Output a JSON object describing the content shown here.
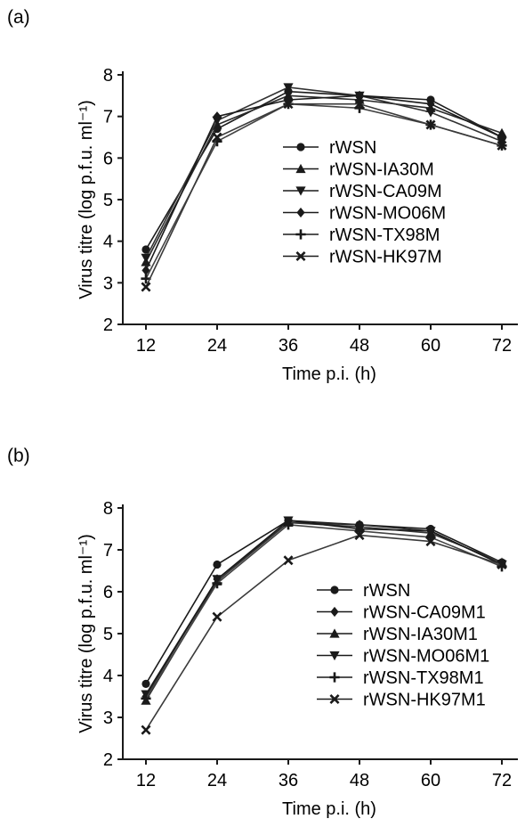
{
  "chart_data": [
    {
      "panel_label": "(a)",
      "type": "line",
      "x": [
        12,
        24,
        36,
        48,
        60,
        72
      ],
      "xlabel": "Time p.i. (h)",
      "ylabel": "Virus titre (log p.f.u. ml⁻¹)",
      "ylim": [
        2,
        8
      ],
      "xticks": [
        "12",
        "24",
        "36",
        "48",
        "60",
        "72"
      ],
      "yticks": [
        "2",
        "3",
        "4",
        "5",
        "6",
        "7",
        "8"
      ],
      "legend_position": "center-right",
      "grid": false,
      "series": [
        {
          "name": "rWSN",
          "marker": "circle",
          "values": [
            3.8,
            6.7,
            7.6,
            7.5,
            7.4,
            6.5
          ]
        },
        {
          "name": "rWSN-IA30M",
          "marker": "triangle-up",
          "values": [
            3.5,
            6.8,
            7.5,
            7.4,
            7.2,
            6.6
          ]
        },
        {
          "name": "rWSN-CA09M",
          "marker": "triangle-down",
          "values": [
            3.6,
            6.9,
            7.7,
            7.5,
            7.1,
            6.4
          ]
        },
        {
          "name": "rWSN-MO06M",
          "marker": "diamond",
          "values": [
            3.3,
            7.0,
            7.4,
            7.5,
            7.3,
            6.5
          ]
        },
        {
          "name": "rWSN-TX98M",
          "marker": "plus",
          "values": [
            3.1,
            6.4,
            7.3,
            7.2,
            6.8,
            6.3
          ]
        },
        {
          "name": "rWSN-HK97M",
          "marker": "x",
          "values": [
            2.9,
            6.5,
            7.3,
            7.3,
            6.8,
            6.3
          ]
        }
      ]
    },
    {
      "panel_label": "(b)",
      "type": "line",
      "x": [
        12,
        24,
        36,
        48,
        60,
        72
      ],
      "xlabel": "Time p.i. (h)",
      "ylabel": "Virus titre (log p.f.u. ml⁻¹)",
      "ylim": [
        2,
        8
      ],
      "xticks": [
        "12",
        "24",
        "36",
        "48",
        "60",
        "72"
      ],
      "yticks": [
        "2",
        "3",
        "4",
        "5",
        "6",
        "7",
        "8"
      ],
      "legend_position": "bottom-right",
      "grid": false,
      "series": [
        {
          "name": "rWSN",
          "marker": "circle",
          "values": [
            3.8,
            6.65,
            7.7,
            7.6,
            7.5,
            6.7
          ]
        },
        {
          "name": "rWSN-CA09M1",
          "marker": "diamond",
          "values": [
            3.5,
            6.3,
            7.65,
            7.6,
            7.45,
            6.65
          ]
        },
        {
          "name": "rWSN-IA30M1",
          "marker": "triangle-up",
          "values": [
            3.4,
            6.25,
            7.65,
            7.55,
            7.4,
            6.7
          ]
        },
        {
          "name": "rWSN-MO06M1",
          "marker": "triangle-down",
          "values": [
            3.55,
            6.3,
            7.7,
            7.5,
            7.45,
            6.65
          ]
        },
        {
          "name": "rWSN-TX98M1",
          "marker": "plus",
          "values": [
            3.45,
            6.2,
            7.6,
            7.45,
            7.3,
            6.6
          ]
        },
        {
          "name": "rWSN-HK97M1",
          "marker": "x",
          "values": [
            2.7,
            5.4,
            6.75,
            7.35,
            7.2,
            6.65
          ]
        }
      ]
    }
  ]
}
